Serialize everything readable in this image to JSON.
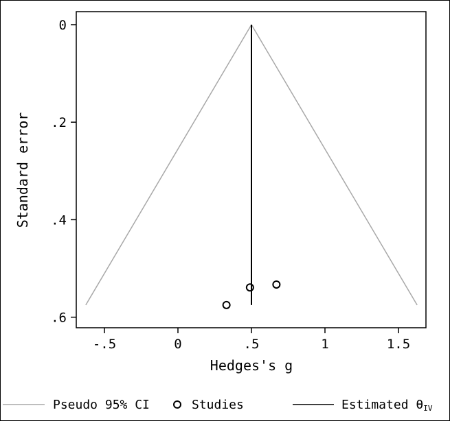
{
  "chart_data": {
    "type": "scatter",
    "xlabel": "Hedges's g",
    "ylabel": "Standard error",
    "x_ticks": [
      {
        "value": -0.5,
        "label": "-.5"
      },
      {
        "value": 0,
        "label": "0"
      },
      {
        "value": 0.5,
        "label": ".5"
      },
      {
        "value": 1,
        "label": "1"
      },
      {
        "value": 1.5,
        "label": "1.5"
      }
    ],
    "y_ticks": [
      {
        "value": 0,
        "label": "0"
      },
      {
        "value": 0.2,
        "label": ".2"
      },
      {
        "value": 0.4,
        "label": ".4"
      },
      {
        "value": 0.6,
        "label": ".6"
      }
    ],
    "xlim": [
      -0.7,
      1.7
    ],
    "ylim": [
      0,
      0.63
    ],
    "y_reversed": true,
    "grid": false,
    "legend_position": "bottom",
    "estimate": 0.5,
    "ci_se_max": 0.575,
    "studies": [
      {
        "x": 0.33,
        "y": 0.575
      },
      {
        "x": 0.49,
        "y": 0.539
      },
      {
        "x": 0.67,
        "y": 0.533
      }
    ],
    "legend": {
      "ci_label": "Pseudo 95% CI",
      "studies_label": "Studies",
      "estimate_label": "Estimated θ",
      "estimate_sub": "IV"
    },
    "colors": {
      "ci": "#a8a8a8",
      "estimate": "#000000",
      "studies": "#000000"
    }
  }
}
